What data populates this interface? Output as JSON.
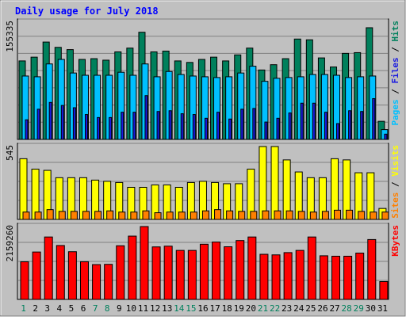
{
  "title": "Daily usage for July 2018",
  "colors": {
    "background": "#c0c0c0",
    "panel": "#c0c0c0",
    "hits": "#00805c",
    "files": "#0080ff",
    "files_light": "#00c0ff",
    "pages": "#1a1ae0",
    "visits": "#ffff00",
    "sites": "#ff8000",
    "kbytes": "#ff0000",
    "title": "#0000ff",
    "gridline": "#808080"
  },
  "legend": {
    "hits": "Hits",
    "files": "Files",
    "pages": "Pages",
    "visits": "Visits",
    "sites": "Sites",
    "kbytes": "KBytes",
    "sep": " / "
  },
  "chart_data": [
    {
      "type": "bar",
      "panel": "hits-files-pages",
      "ymax_label": "155335",
      "ylim": [
        0,
        155335
      ],
      "categories": [
        "1",
        "2",
        "3",
        "4",
        "5",
        "6",
        "7",
        "8",
        "9",
        "10",
        "11",
        "12",
        "13",
        "14",
        "15",
        "16",
        "17",
        "18",
        "19",
        "20",
        "21",
        "22",
        "23",
        "24",
        "25",
        "26",
        "27",
        "28",
        "29",
        "30",
        "31"
      ],
      "weekend_days": [
        "1",
        "7",
        "8",
        "14",
        "15",
        "21",
        "22",
        "28",
        "29"
      ],
      "series": [
        {
          "name": "Hits",
          "values": [
            104000,
            109000,
            129000,
            122000,
            119000,
            106000,
            107000,
            105000,
            116000,
            121000,
            142000,
            116000,
            117000,
            104000,
            102000,
            106000,
            109000,
            104000,
            112000,
            121000,
            92000,
            99000,
            107000,
            133000,
            132000,
            108000,
            96000,
            114000,
            115000,
            148000,
            24000
          ]
        },
        {
          "name": "Files",
          "values": [
            84000,
            83000,
            100000,
            106000,
            88000,
            85000,
            85000,
            85000,
            89000,
            85000,
            100000,
            83000,
            90000,
            86000,
            84000,
            83000,
            82000,
            83000,
            88000,
            97000,
            77000,
            81000,
            82000,
            83000,
            86000,
            86000,
            85000,
            82000,
            83000,
            84000,
            13000
          ]
        },
        {
          "name": "Pages",
          "values": [
            26000,
            40000,
            49000,
            45000,
            42000,
            33000,
            29000,
            29000,
            36000,
            36000,
            58000,
            37000,
            38000,
            34000,
            33000,
            28000,
            36000,
            27000,
            40000,
            41000,
            23000,
            28000,
            35000,
            48000,
            48000,
            36000,
            21000,
            38000,
            37000,
            54000,
            7000
          ]
        }
      ]
    },
    {
      "type": "bar",
      "panel": "visits-sites",
      "ymax_label": "545",
      "ylim": [
        0,
        545
      ],
      "categories": [
        "1",
        "2",
        "3",
        "4",
        "5",
        "6",
        "7",
        "8",
        "9",
        "10",
        "11",
        "12",
        "13",
        "14",
        "15",
        "16",
        "17",
        "18",
        "19",
        "20",
        "21",
        "22",
        "23",
        "24",
        "25",
        "26",
        "27",
        "28",
        "29",
        "30",
        "31"
      ],
      "series": [
        {
          "name": "Visits",
          "values": [
            454,
            376,
            367,
            312,
            312,
            312,
            294,
            285,
            276,
            240,
            240,
            258,
            258,
            240,
            276,
            285,
            276,
            267,
            267,
            376,
            545,
            545,
            445,
            355,
            312,
            312,
            454,
            445,
            349,
            349,
            82
          ]
        },
        {
          "name": "Sites",
          "values": [
            55,
            55,
            73,
            60,
            60,
            60,
            60,
            64,
            55,
            55,
            64,
            50,
            55,
            55,
            55,
            64,
            73,
            64,
            60,
            60,
            64,
            64,
            64,
            60,
            55,
            60,
            69,
            69,
            60,
            55,
            55
          ]
        }
      ]
    },
    {
      "type": "bar",
      "panel": "kbytes",
      "ymax_label": "2159260",
      "ylim": [
        0,
        2159260
      ],
      "categories": [
        "1",
        "2",
        "3",
        "4",
        "5",
        "6",
        "7",
        "8",
        "9",
        "10",
        "11",
        "12",
        "13",
        "14",
        "15",
        "16",
        "17",
        "18",
        "19",
        "20",
        "21",
        "22",
        "23",
        "24",
        "25",
        "26",
        "27",
        "28",
        "29",
        "30",
        "31"
      ],
      "series": [
        {
          "name": "KBytes",
          "values": [
            1115000,
            1405000,
            1850000,
            1597000,
            1414000,
            1117000,
            1032000,
            1039000,
            1590000,
            1876000,
            2159000,
            1556000,
            1578000,
            1452000,
            1452000,
            1635000,
            1700000,
            1560000,
            1744000,
            1850000,
            1337000,
            1320000,
            1387000,
            1452000,
            1850000,
            1293000,
            1280000,
            1280000,
            1373000,
            1774000,
            528000
          ]
        }
      ]
    }
  ]
}
